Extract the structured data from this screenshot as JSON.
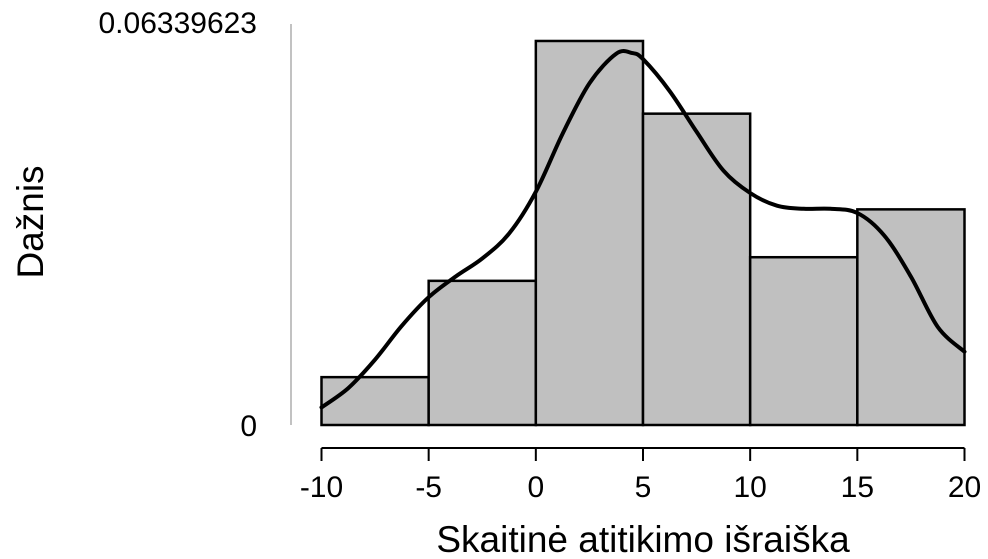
{
  "chart_data": {
    "type": "bar",
    "subtype": "histogram-with-density",
    "xlabel": "Skaitinė atitikimo išraiška",
    "ylabel": "Dažnis",
    "xlim": [
      -10,
      20
    ],
    "ylim": [
      0,
      0.06339623
    ],
    "x_ticks": [
      "-10",
      "-5",
      "0",
      "5",
      "10",
      "15",
      "20"
    ],
    "x_tick_values": [
      -10,
      -5,
      0,
      5,
      10,
      15,
      20
    ],
    "y_ticks": [
      "0",
      "0.06339623"
    ],
    "y_tick_values": [
      0,
      0.06339623
    ],
    "bins": [
      {
        "start": -10,
        "end": -5,
        "value": 0.0079
      },
      {
        "start": -5,
        "end": 0,
        "value": 0.0238
      },
      {
        "start": 0,
        "end": 5,
        "value": 0.0634
      },
      {
        "start": 5,
        "end": 10,
        "value": 0.0514
      },
      {
        "start": 10,
        "end": 15,
        "value": 0.0277
      },
      {
        "start": 15,
        "end": 20,
        "value": 0.0356
      }
    ],
    "density_curve": {
      "x": [
        -10,
        -8.75,
        -7.5,
        -6.25,
        -5,
        -3.75,
        -2.5,
        -1.25,
        0,
        1.25,
        2.5,
        3.75,
        4.5,
        5,
        6.25,
        7.5,
        8.75,
        10,
        11.25,
        12.5,
        13.75,
        15,
        16.25,
        17.5,
        18.75,
        20
      ],
      "y": [
        0.0029,
        0.0061,
        0.0108,
        0.0164,
        0.0211,
        0.0245,
        0.0275,
        0.0316,
        0.0385,
        0.0481,
        0.0564,
        0.0613,
        0.0614,
        0.0604,
        0.0551,
        0.0484,
        0.042,
        0.0383,
        0.0362,
        0.0357,
        0.0357,
        0.035,
        0.0313,
        0.0245,
        0.0162,
        0.0121
      ]
    },
    "bar_color": "#c0c0c0",
    "bar_edge_color": "#000000",
    "curve_color": "#000000",
    "grid": false
  }
}
